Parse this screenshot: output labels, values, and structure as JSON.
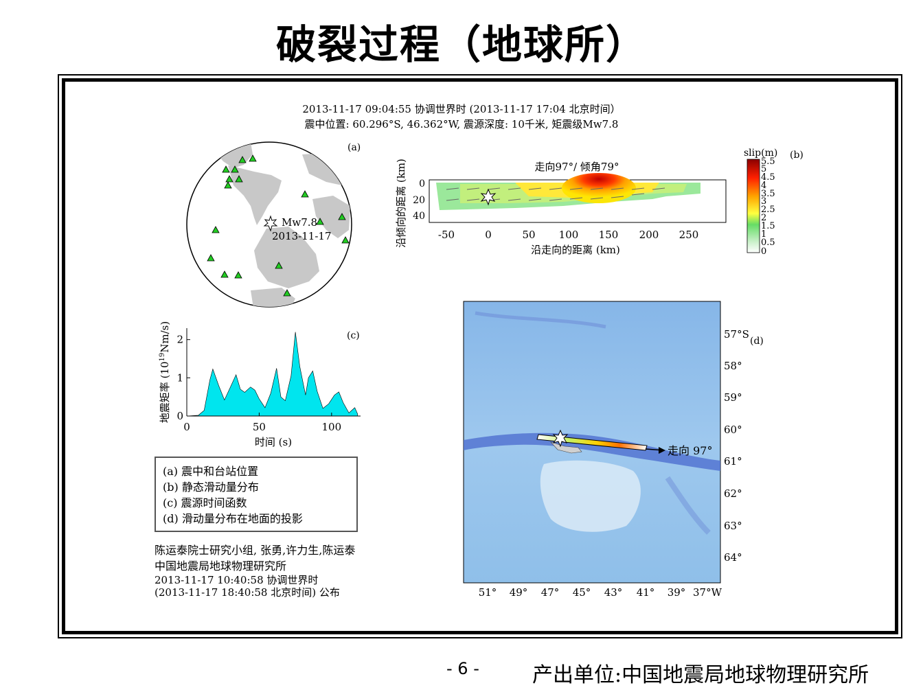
{
  "slide": {
    "title": "破裂过程（地球所）",
    "page_number": "- 6 -",
    "producer": "产出单位:中国地震局地球物理研究所"
  },
  "header": {
    "line1": "2013-11-17 09:04:55 协调世界时  (2013-11-17 17:04 北京时间）",
    "line2": "震中位置: 60.296°S, 46.362°W,  震源深度: 10千米,  矩震级Mw7.8"
  },
  "panel_a": {
    "label": "(a)",
    "event_mag": "Mw7.8",
    "event_date": "2013-11-17",
    "station_color": "#22cc22"
  },
  "panel_b": {
    "label": "(b)",
    "title": "走向97°/ 倾角79°",
    "xlabel": "沿走向的距离 (km)",
    "ylabel": "沿倾向的距离 (km)",
    "xticks": [
      "-50",
      "0",
      "50",
      "100",
      "150",
      "200",
      "250"
    ],
    "yticks": [
      "0",
      "20",
      "40"
    ],
    "colorbar_title": "slip(m)",
    "colorbar_ticks": [
      "5.5",
      "5",
      "4.5",
      "4",
      "3.5",
      "3",
      "2.5",
      "2",
      "1.5",
      "1",
      "0.5",
      "0"
    ]
  },
  "panel_c": {
    "label": "(c)",
    "xlabel": "时间 (s)",
    "ylabel": "地震矩率 (10",
    "ylabel_exp": "19",
    "ylabel_unit": "Nm/s)",
    "xticks": [
      "0",
      "50",
      "100"
    ],
    "yticks": [
      "0",
      "1",
      "2"
    ],
    "fill_color": "#00e5ee"
  },
  "panel_d": {
    "label": "(d)",
    "strike_label": "走向 97°",
    "lat_ticks": [
      "57°S",
      "58°",
      "59°",
      "60°",
      "61°",
      "62°",
      "63°",
      "64°"
    ],
    "lon_ticks": [
      "51°",
      "49°",
      "47°",
      "45°",
      "43°",
      "41°",
      "39°",
      "37°W"
    ]
  },
  "legend": {
    "a": "(a) 震中和台站位置",
    "b": "(b) 静态滑动量分布",
    "c": "(c) 震源时间函数",
    "d": "(d) 滑动量分布在地面的投影"
  },
  "credits": {
    "line1": "陈运泰院士研究小组, 张勇,许力生,陈运泰",
    "line2": "中国地震局地球物理研究所",
    "line3": "2013-11-17 10:40:58 协调世界时",
    "line4": "(2013-11-17 18:40:58 北京时间)  公布"
  },
  "chart_data": [
    {
      "type": "area",
      "name": "source-time-function",
      "xlabel": "时间 (s)",
      "ylabel": "地震矩率 (10^19 Nm/s)",
      "xlim": [
        0,
        120
      ],
      "ylim": [
        0,
        2.3
      ],
      "x": [
        0,
        8,
        12,
        16,
        18,
        22,
        26,
        30,
        34,
        37,
        40,
        44,
        47,
        50,
        54,
        58,
        62,
        65,
        68,
        72,
        75,
        78,
        82,
        84,
        87,
        90,
        94,
        98,
        102,
        105,
        108,
        112,
        116,
        118
      ],
      "y": [
        0,
        0.02,
        0.15,
        0.95,
        1.23,
        0.8,
        0.42,
        0.75,
        1.08,
        0.7,
        0.62,
        0.76,
        0.68,
        0.45,
        0.22,
        0.6,
        1.25,
        0.5,
        0.4,
        1.05,
        2.2,
        1.3,
        0.55,
        1.0,
        1.18,
        0.65,
        0.2,
        0.32,
        0.55,
        0.63,
        0.35,
        0.08,
        0.22,
        0.05
      ]
    }
  ]
}
